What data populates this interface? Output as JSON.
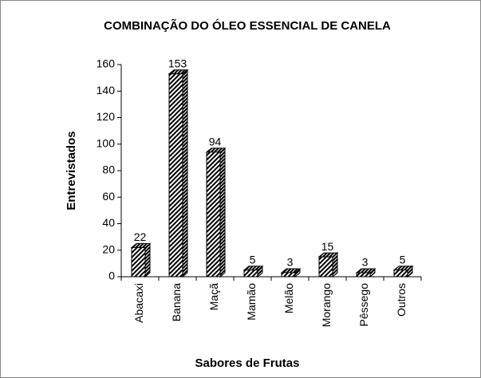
{
  "chart_data": {
    "type": "bar3d",
    "title": "COMBINAÇÃO DO ÓLEO ESSENCIAL DE CANELA",
    "x_label": "Sabores de Frutas",
    "y_label": "Entrevistados",
    "categories": [
      "Abacaxi",
      "Banana",
      "Maçã",
      "Mamão",
      "Melão",
      "Morango",
      "Pêssego",
      "Outros"
    ],
    "values": [
      22,
      153,
      94,
      5,
      3,
      15,
      3,
      5
    ],
    "ylim": [
      0,
      160
    ],
    "yticks": [
      0,
      20,
      40,
      60,
      80,
      100,
      120,
      140,
      160
    ],
    "grid": false,
    "color": "#000000"
  }
}
